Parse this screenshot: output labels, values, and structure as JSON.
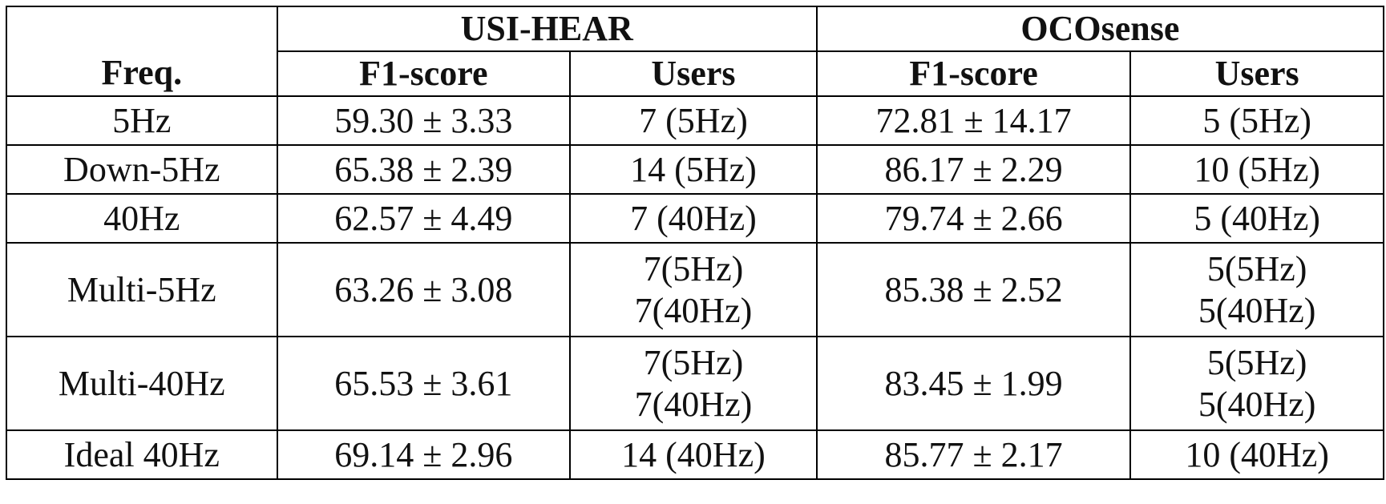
{
  "table": {
    "freq_header": "Freq.",
    "groups": {
      "usi_hear": "USI-HEAR",
      "ocosense": "OCOsense"
    },
    "columns": {
      "usi_f1": "F1-score",
      "usi_users": "Users",
      "oco_f1": "F1-score",
      "oco_users": "Users"
    },
    "rows": [
      {
        "freq": "5Hz",
        "usi_f1": "59.30 ± 3.33",
        "usi_users": [
          "7 (5Hz)"
        ],
        "oco_f1": "72.81 ± 14.17",
        "oco_users": [
          "5 (5Hz)"
        ]
      },
      {
        "freq": "Down-5Hz",
        "usi_f1": "65.38 ± 2.39",
        "usi_users": [
          "14 (5Hz)"
        ],
        "oco_f1": "86.17 ± 2.29",
        "oco_users": [
          "10 (5Hz)"
        ]
      },
      {
        "freq": "40Hz",
        "usi_f1": "62.57 ± 4.49",
        "usi_users": [
          "7 (40Hz)"
        ],
        "oco_f1": "79.74 ± 2.66",
        "oco_users": [
          "5 (40Hz)"
        ]
      },
      {
        "freq": "Multi-5Hz",
        "usi_f1": "63.26 ± 3.08",
        "usi_users": [
          "7(5Hz)",
          "7(40Hz)"
        ],
        "oco_f1": "85.38 ± 2.52",
        "oco_users": [
          "5(5Hz)",
          "5(40Hz)"
        ]
      },
      {
        "freq": "Multi-40Hz",
        "usi_f1": "65.53 ± 3.61",
        "usi_users": [
          "7(5Hz)",
          "7(40Hz)"
        ],
        "oco_f1": "83.45 ± 1.99",
        "oco_users": [
          "5(5Hz)",
          "5(40Hz)"
        ]
      },
      {
        "freq": "Ideal 40Hz",
        "usi_f1": "69.14 ± 2.96",
        "usi_users": [
          "14 (40Hz)"
        ],
        "oco_f1": "85.77 ± 2.17",
        "oco_users": [
          "10 (40Hz)"
        ]
      }
    ]
  }
}
